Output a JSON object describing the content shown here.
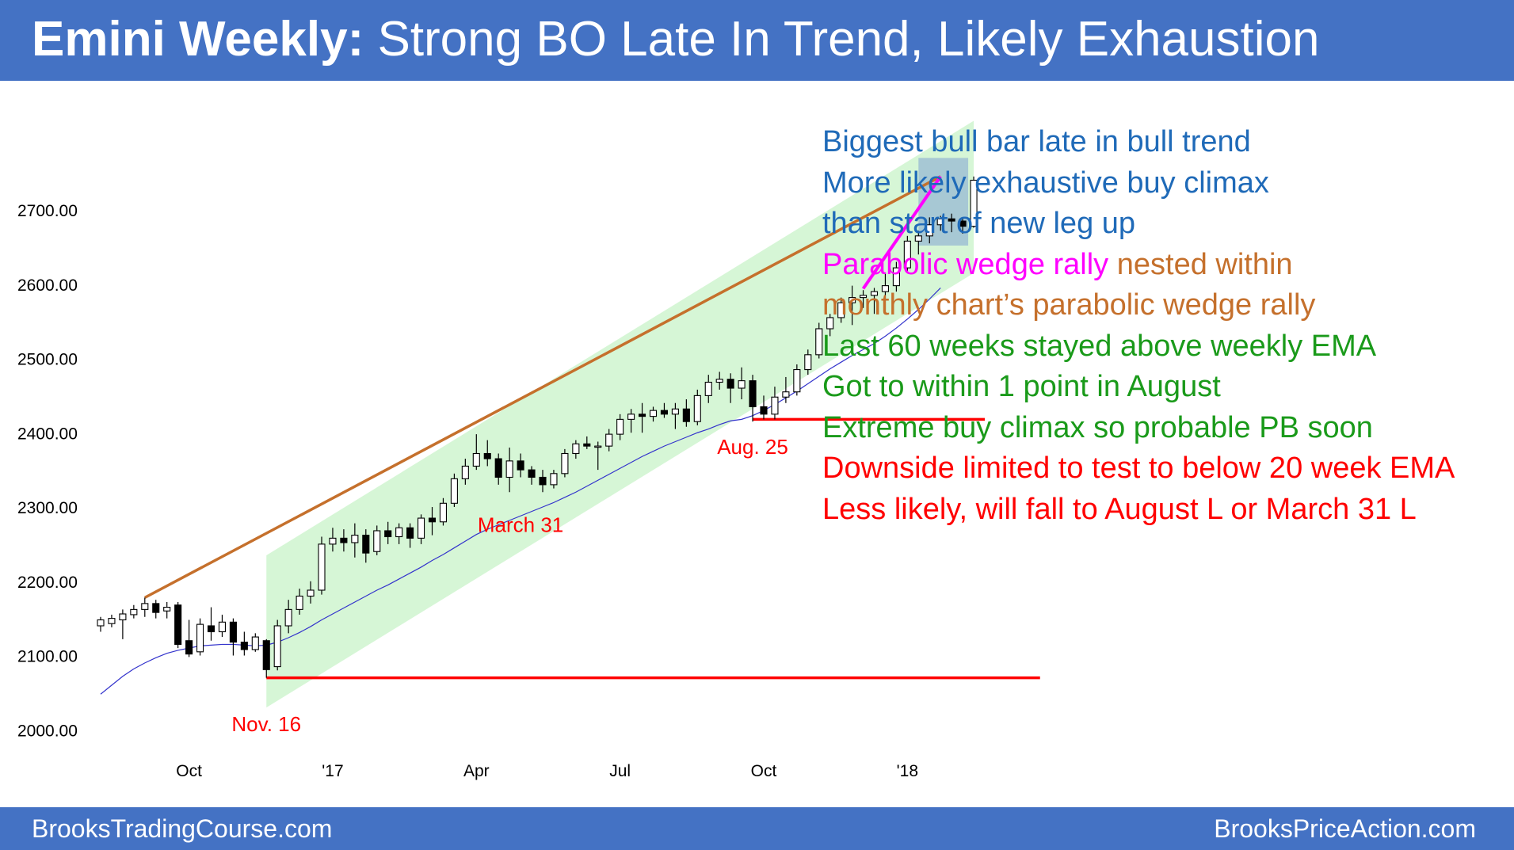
{
  "header": {
    "title_bold": "Emini Weekly:",
    "title_rest": " Strong BO Late In Trend, Likely Exhaustion"
  },
  "footer": {
    "left": "BrooksTradingCourse.com",
    "right": "BrooksPriceAction.com"
  },
  "notes": [
    {
      "text": "Biggest bull bar late in bull trend",
      "color": "blue"
    },
    {
      "text": "More likely exhaustive buy climax",
      "color": "blue"
    },
    {
      "text": "than start of new leg up",
      "color": "blue"
    },
    {
      "parts": [
        {
          "text": "Parabolic wedge rally",
          "color": "magenta"
        },
        {
          "text": " nested within",
          "color": "brown"
        }
      ]
    },
    {
      "text": "monthly chart’s parabolic wedge rally",
      "color": "brown"
    },
    {
      "text": "Last 60 weeks stayed above weekly EMA",
      "color": "green"
    },
    {
      "text": "Got to within 1 point in August",
      "color": "green"
    },
    {
      "text": "Extreme buy climax so probable PB soon",
      "color": "green"
    },
    {
      "text": "Downside limited to test to below 20 week EMA",
      "color": "red"
    },
    {
      "text": "Less likely, will fall to August L or March 31 L",
      "color": "red"
    }
  ],
  "colors": {
    "header_bg": "#4472c4",
    "channel": "#d4f5d4",
    "ema": "#3333cc",
    "trendline": "#c5702c",
    "wedge": "#ff00ff",
    "support": "#ff0000",
    "highlight_box": "#9fbfd4",
    "bull_candle": "#ffffff",
    "bear_candle": "#000000"
  },
  "chart_data": {
    "type": "candlestick",
    "y_ticks": [
      "2700.00",
      "2600.00",
      "2500.00",
      "2400.00",
      "2300.00",
      "2200.00",
      "2100.00",
      "2000.00"
    ],
    "ylim": [
      2000,
      2700
    ],
    "x_ticks": [
      "Oct",
      "'17",
      "Apr",
      "Jul",
      "Oct",
      "'18"
    ],
    "x_tick_weeks": [
      8,
      21,
      34,
      47,
      60,
      73
    ],
    "annotations": [
      {
        "text": "Nov. 16",
        "week": 15,
        "price": 2008
      },
      {
        "text": "March 31",
        "week": 38,
        "price": 2276
      },
      {
        "text": "Aug. 25",
        "week": 59,
        "price": 2381
      }
    ],
    "lines": {
      "trendline": {
        "from": {
          "week": 4,
          "price": 2178
        },
        "to": {
          "week": 76,
          "price": 2745
        }
      },
      "wedge": {
        "from": {
          "week": 69,
          "price": 2594
        },
        "to": {
          "week": 76,
          "price": 2745
        }
      },
      "support_nov": {
        "from": {
          "week": 15,
          "price": 2070
        },
        "to": {
          "week": 85,
          "price": 2070
        }
      },
      "support_aug": {
        "from": {
          "week": 59,
          "price": 2418
        },
        "to": {
          "week": 80,
          "price": 2418
        }
      },
      "channel": {
        "start_week": 15,
        "end_week": 79,
        "lower_start": 2030,
        "lower_end": 2615,
        "upper_start": 2235,
        "upper_end": 2820
      },
      "highlight_box": {
        "week_from": 74,
        "week_to": 78.5,
        "price_from": 2652,
        "price_to": 2770
      }
    },
    "ema_20": [
      2048,
      2060,
      2072,
      2082,
      2090,
      2097,
      2103,
      2107,
      2110,
      2113,
      2114,
      2115,
      2115,
      2114,
      2113,
      2114,
      2118,
      2124,
      2131,
      2139,
      2148,
      2156,
      2164,
      2172,
      2180,
      2188,
      2195,
      2203,
      2211,
      2219,
      2228,
      2236,
      2245,
      2254,
      2263,
      2270,
      2276,
      2282,
      2288,
      2294,
      2300,
      2306,
      2313,
      2320,
      2328,
      2336,
      2344,
      2352,
      2360,
      2368,
      2375,
      2382,
      2388,
      2394,
      2400,
      2405,
      2411,
      2416,
      2418,
      2423,
      2430,
      2438,
      2447,
      2456,
      2466,
      2476,
      2486,
      2495,
      2504,
      2512,
      2520,
      2530,
      2541,
      2553,
      2566,
      2580,
      2595
    ],
    "candles": [
      {
        "o": 2140,
        "h": 2152,
        "l": 2132,
        "c": 2148
      },
      {
        "o": 2143,
        "h": 2155,
        "l": 2138,
        "c": 2150
      },
      {
        "o": 2148,
        "h": 2162,
        "l": 2122,
        "c": 2156
      },
      {
        "o": 2155,
        "h": 2168,
        "l": 2150,
        "c": 2162
      },
      {
        "o": 2162,
        "h": 2178,
        "l": 2152,
        "c": 2170
      },
      {
        "o": 2170,
        "h": 2175,
        "l": 2150,
        "c": 2158
      },
      {
        "o": 2160,
        "h": 2172,
        "l": 2150,
        "c": 2165
      },
      {
        "o": 2168,
        "h": 2172,
        "l": 2110,
        "c": 2115
      },
      {
        "o": 2120,
        "h": 2148,
        "l": 2098,
        "c": 2102
      },
      {
        "o": 2105,
        "h": 2150,
        "l": 2100,
        "c": 2142
      },
      {
        "o": 2140,
        "h": 2165,
        "l": 2120,
        "c": 2132
      },
      {
        "o": 2132,
        "h": 2155,
        "l": 2125,
        "c": 2145
      },
      {
        "o": 2145,
        "h": 2150,
        "l": 2100,
        "c": 2118
      },
      {
        "o": 2118,
        "h": 2132,
        "l": 2100,
        "c": 2108
      },
      {
        "o": 2108,
        "h": 2130,
        "l": 2105,
        "c": 2125
      },
      {
        "o": 2120,
        "h": 2122,
        "l": 2070,
        "c": 2081
      },
      {
        "o": 2085,
        "h": 2148,
        "l": 2080,
        "c": 2140
      },
      {
        "o": 2140,
        "h": 2175,
        "l": 2130,
        "c": 2162
      },
      {
        "o": 2162,
        "h": 2190,
        "l": 2155,
        "c": 2180
      },
      {
        "o": 2180,
        "h": 2200,
        "l": 2170,
        "c": 2188
      },
      {
        "o": 2188,
        "h": 2260,
        "l": 2182,
        "c": 2250
      },
      {
        "o": 2250,
        "h": 2272,
        "l": 2240,
        "c": 2258
      },
      {
        "o": 2258,
        "h": 2270,
        "l": 2240,
        "c": 2252
      },
      {
        "o": 2252,
        "h": 2278,
        "l": 2232,
        "c": 2262
      },
      {
        "o": 2262,
        "h": 2270,
        "l": 2225,
        "c": 2238
      },
      {
        "o": 2240,
        "h": 2275,
        "l": 2235,
        "c": 2268
      },
      {
        "o": 2268,
        "h": 2280,
        "l": 2250,
        "c": 2260
      },
      {
        "o": 2260,
        "h": 2278,
        "l": 2250,
        "c": 2272
      },
      {
        "o": 2272,
        "h": 2278,
        "l": 2245,
        "c": 2258
      },
      {
        "o": 2258,
        "h": 2290,
        "l": 2250,
        "c": 2285
      },
      {
        "o": 2285,
        "h": 2300,
        "l": 2262,
        "c": 2280
      },
      {
        "o": 2280,
        "h": 2312,
        "l": 2275,
        "c": 2305
      },
      {
        "o": 2305,
        "h": 2345,
        "l": 2300,
        "c": 2338
      },
      {
        "o": 2338,
        "h": 2365,
        "l": 2330,
        "c": 2355
      },
      {
        "o": 2355,
        "h": 2398,
        "l": 2350,
        "c": 2372
      },
      {
        "o": 2372,
        "h": 2390,
        "l": 2355,
        "c": 2365
      },
      {
        "o": 2365,
        "h": 2372,
        "l": 2330,
        "c": 2340
      },
      {
        "o": 2340,
        "h": 2380,
        "l": 2320,
        "c": 2362
      },
      {
        "o": 2362,
        "h": 2372,
        "l": 2340,
        "c": 2350
      },
      {
        "o": 2350,
        "h": 2355,
        "l": 2330,
        "c": 2340
      },
      {
        "o": 2340,
        "h": 2350,
        "l": 2320,
        "c": 2330
      },
      {
        "o": 2330,
        "h": 2350,
        "l": 2325,
        "c": 2345
      },
      {
        "o": 2345,
        "h": 2378,
        "l": 2340,
        "c": 2372
      },
      {
        "o": 2372,
        "h": 2390,
        "l": 2365,
        "c": 2385
      },
      {
        "o": 2385,
        "h": 2395,
        "l": 2378,
        "c": 2382
      },
      {
        "o": 2382,
        "h": 2388,
        "l": 2350,
        "c": 2382
      },
      {
        "o": 2382,
        "h": 2405,
        "l": 2375,
        "c": 2398
      },
      {
        "o": 2398,
        "h": 2425,
        "l": 2390,
        "c": 2418
      },
      {
        "o": 2418,
        "h": 2432,
        "l": 2400,
        "c": 2425
      },
      {
        "o": 2425,
        "h": 2440,
        "l": 2400,
        "c": 2422
      },
      {
        "o": 2422,
        "h": 2435,
        "l": 2415,
        "c": 2430
      },
      {
        "o": 2430,
        "h": 2440,
        "l": 2420,
        "c": 2425
      },
      {
        "o": 2425,
        "h": 2440,
        "l": 2405,
        "c": 2432
      },
      {
        "o": 2432,
        "h": 2445,
        "l": 2408,
        "c": 2415
      },
      {
        "o": 2415,
        "h": 2458,
        "l": 2410,
        "c": 2450
      },
      {
        "o": 2450,
        "h": 2478,
        "l": 2440,
        "c": 2468
      },
      {
        "o": 2468,
        "h": 2482,
        "l": 2458,
        "c": 2472
      },
      {
        "o": 2472,
        "h": 2480,
        "l": 2440,
        "c": 2460
      },
      {
        "o": 2460,
        "h": 2488,
        "l": 2445,
        "c": 2470
      },
      {
        "o": 2470,
        "h": 2478,
        "l": 2415,
        "c": 2435
      },
      {
        "o": 2435,
        "h": 2450,
        "l": 2418,
        "c": 2425
      },
      {
        "o": 2425,
        "h": 2462,
        "l": 2418,
        "c": 2448
      },
      {
        "o": 2448,
        "h": 2475,
        "l": 2440,
        "c": 2455
      },
      {
        "o": 2455,
        "h": 2492,
        "l": 2450,
        "c": 2485
      },
      {
        "o": 2485,
        "h": 2512,
        "l": 2478,
        "c": 2505
      },
      {
        "o": 2505,
        "h": 2548,
        "l": 2500,
        "c": 2540
      },
      {
        "o": 2540,
        "h": 2560,
        "l": 2530,
        "c": 2555
      },
      {
        "o": 2555,
        "h": 2582,
        "l": 2548,
        "c": 2575
      },
      {
        "o": 2575,
        "h": 2598,
        "l": 2545,
        "c": 2582
      },
      {
        "o": 2582,
        "h": 2592,
        "l": 2568,
        "c": 2585
      },
      {
        "o": 2585,
        "h": 2595,
        "l": 2560,
        "c": 2590
      },
      {
        "o": 2590,
        "h": 2615,
        "l": 2565,
        "c": 2598
      },
      {
        "o": 2598,
        "h": 2630,
        "l": 2590,
        "c": 2622
      },
      {
        "o": 2622,
        "h": 2665,
        "l": 2615,
        "c": 2658
      },
      {
        "o": 2658,
        "h": 2672,
        "l": 2640,
        "c": 2665
      },
      {
        "o": 2665,
        "h": 2690,
        "l": 2655,
        "c": 2680
      },
      {
        "o": 2680,
        "h": 2692,
        "l": 2672,
        "c": 2688
      },
      {
        "o": 2688,
        "h": 2695,
        "l": 2670,
        "c": 2685
      },
      {
        "o": 2685,
        "h": 2690,
        "l": 2668,
        "c": 2678
      },
      {
        "o": 2678,
        "h": 2745,
        "l": 2676,
        "c": 2740
      }
    ]
  }
}
